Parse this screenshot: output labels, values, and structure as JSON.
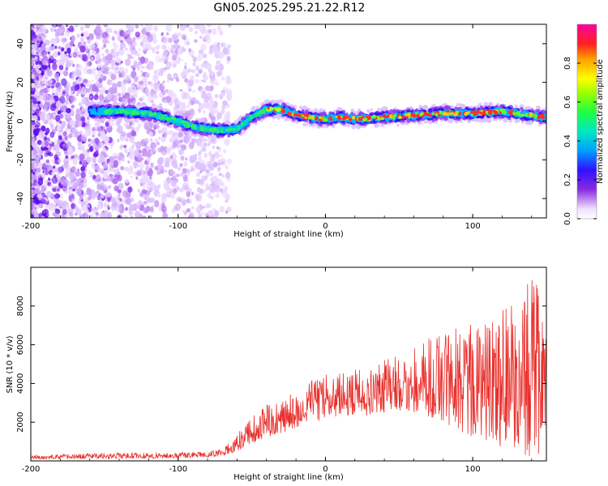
{
  "title": "GN05.2025.295.21.22.R12",
  "chart_data": [
    {
      "type": "heatmap",
      "name": "spectrogram",
      "xlabel": "Height of straight line (km)",
      "ylabel": "Frequency (Hz)",
      "xlim": [
        -200,
        150
      ],
      "ylim": [
        -50,
        50
      ],
      "xticks": [
        -200,
        -100,
        0,
        100
      ],
      "yticks": [
        -40,
        -20,
        0,
        20,
        40
      ],
      "ridge": {
        "x": [
          -160,
          -140,
          -120,
          -100,
          -90,
          -80,
          -70,
          -60,
          -50,
          -40,
          -30,
          -20,
          -10,
          0,
          10,
          20,
          40,
          60,
          80,
          100,
          120,
          140,
          150
        ],
        "freq": [
          5,
          5,
          4,
          0,
          -3,
          -4,
          -5,
          -4,
          2,
          6,
          6,
          3,
          2,
          1,
          2,
          1,
          2,
          3,
          4,
          4,
          5,
          3,
          2
        ]
      },
      "colorbar": {
        "label": "Normalized spectral amplitude",
        "range": [
          0.0,
          1.0
        ],
        "ticks": [
          0.0,
          0.2,
          0.4,
          0.6,
          0.8
        ]
      }
    },
    {
      "type": "line",
      "name": "snr",
      "xlabel": "Height of straight line (km)",
      "ylabel": "SNR (10 * v/v)",
      "xlim": [
        -200,
        150
      ],
      "ylim": [
        0,
        10000
      ],
      "xticks": [
        -200,
        -100,
        0,
        100
      ],
      "yticks": [
        2000,
        4000,
        6000,
        8000
      ],
      "color": "#e8302c",
      "envelope": {
        "x": [
          -200,
          -150,
          -100,
          -80,
          -70,
          -60,
          -50,
          -40,
          -30,
          -20,
          -10,
          0,
          10,
          20,
          30,
          40,
          50,
          60,
          70,
          80,
          90,
          100,
          110,
          120,
          130,
          140,
          150
        ],
        "low": [
          100,
          120,
          150,
          200,
          250,
          500,
          900,
          1200,
          1400,
          1700,
          1900,
          2200,
          2300,
          2400,
          2300,
          2500,
          2600,
          2500,
          2300,
          2000,
          1600,
          1200,
          900,
          700,
          400,
          200,
          300
        ],
        "high": [
          300,
          400,
          450,
          500,
          600,
          1400,
          2400,
          3000,
          3300,
          3500,
          4200,
          4600,
          4700,
          4900,
          5000,
          5300,
          5500,
          6000,
          6400,
          6800,
          6900,
          7200,
          7500,
          8000,
          8400,
          9600,
          8800
        ]
      }
    }
  ]
}
